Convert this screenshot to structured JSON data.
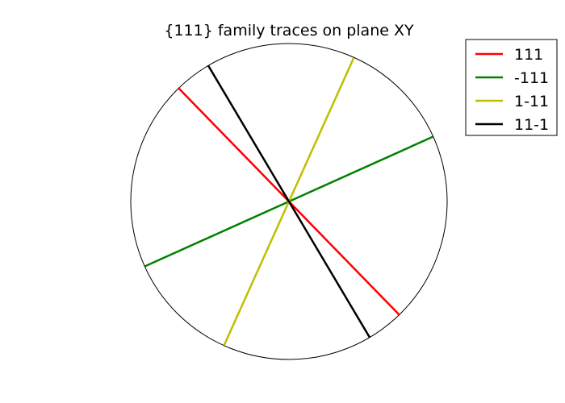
{
  "chart_data": {
    "type": "line",
    "title": "{111} family traces on plane XY",
    "xlim": [
      -1,
      1
    ],
    "ylim": [
      -1,
      1
    ],
    "grid": false,
    "legend_placement": "top-right",
    "boundary": "unit-circle",
    "series": [
      {
        "name": "111",
        "color": "#ff0000",
        "x": [
          -0.7,
          0.7
        ],
        "y": [
          0.72,
          -0.72
        ]
      },
      {
        "name": "-111",
        "color": "#008000",
        "x": [
          -0.91,
          0.91
        ],
        "y": [
          -0.41,
          0.41
        ]
      },
      {
        "name": "1-11",
        "color": "#bfbf00",
        "x": [
          -0.41,
          0.41
        ],
        "y": [
          -0.91,
          0.91
        ]
      },
      {
        "name": "11-1",
        "color": "#000000",
        "x": [
          -0.51,
          0.51
        ],
        "y": [
          0.86,
          -0.86
        ]
      }
    ]
  }
}
